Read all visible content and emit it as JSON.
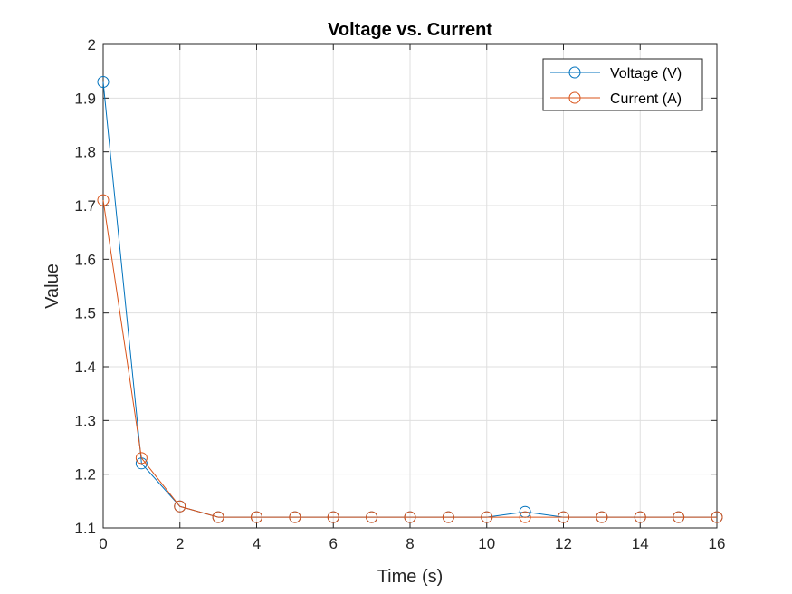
{
  "chart_data": {
    "type": "line",
    "title": "Voltage vs. Current",
    "xlabel": "Time (s)",
    "ylabel": "Value",
    "xlim": [
      0,
      16
    ],
    "ylim": [
      1.1,
      2.0
    ],
    "xticks": [
      0,
      2,
      4,
      6,
      8,
      10,
      12,
      14,
      16
    ],
    "xtick_labels": [
      "0",
      "2",
      "4",
      "6",
      "8",
      "10",
      "12",
      "14",
      "16"
    ],
    "yticks": [
      1.1,
      1.2,
      1.3,
      1.4,
      1.5,
      1.6,
      1.7,
      1.8,
      1.9,
      2.0
    ],
    "ytick_labels": [
      "1.1",
      "1.2",
      "1.3",
      "1.4",
      "1.5",
      "1.6",
      "1.7",
      "1.8",
      "1.9",
      "2"
    ],
    "grid": true,
    "legend_position": "top-right",
    "x": [
      0,
      1,
      2,
      3,
      4,
      5,
      6,
      7,
      8,
      9,
      10,
      11,
      12,
      13,
      14,
      15,
      16
    ],
    "series": [
      {
        "name": "Voltage (V)",
        "color": "#0072BD",
        "marker": "circle",
        "values": [
          1.93,
          1.22,
          1.14,
          1.12,
          1.12,
          1.12,
          1.12,
          1.12,
          1.12,
          1.12,
          1.12,
          1.13,
          1.12,
          1.12,
          1.12,
          1.12,
          1.12
        ]
      },
      {
        "name": "Current (A)",
        "color": "#D95319",
        "marker": "circle",
        "values": [
          1.71,
          1.23,
          1.14,
          1.12,
          1.12,
          1.12,
          1.12,
          1.12,
          1.12,
          1.12,
          1.12,
          1.12,
          1.12,
          1.12,
          1.12,
          1.12,
          1.12
        ]
      }
    ]
  }
}
